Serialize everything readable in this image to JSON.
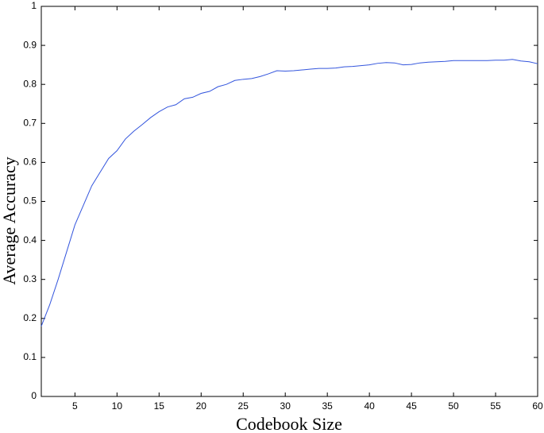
{
  "chart_data": {
    "type": "line",
    "xlabel": "Codebook Size",
    "ylabel": "Average Accuracy",
    "x": [
      1,
      2,
      3,
      4,
      5,
      6,
      7,
      8,
      9,
      10,
      11,
      12,
      13,
      14,
      15,
      16,
      17,
      18,
      19,
      20,
      21,
      22,
      23,
      24,
      25,
      26,
      27,
      28,
      29,
      30,
      31,
      32,
      33,
      34,
      35,
      36,
      37,
      38,
      39,
      40,
      41,
      42,
      43,
      44,
      45,
      46,
      47,
      48,
      49,
      50,
      51,
      52,
      53,
      54,
      55,
      56,
      57,
      58,
      59,
      60
    ],
    "series": [
      {
        "color": "#3355dd",
        "values": [
          0.18,
          0.235,
          0.3,
          0.37,
          0.44,
          0.49,
          0.54,
          0.575,
          0.61,
          0.63,
          0.66,
          0.68,
          0.697,
          0.715,
          0.73,
          0.742,
          0.748,
          0.763,
          0.767,
          0.777,
          0.782,
          0.794,
          0.8,
          0.81,
          0.813,
          0.815,
          0.82,
          0.827,
          0.835,
          0.834,
          0.835,
          0.837,
          0.839,
          0.841,
          0.841,
          0.842,
          0.845,
          0.846,
          0.848,
          0.85,
          0.854,
          0.856,
          0.855,
          0.85,
          0.851,
          0.855,
          0.857,
          0.858,
          0.859,
          0.861,
          0.861,
          0.861,
          0.861,
          0.861,
          0.862,
          0.862,
          0.864,
          0.86,
          0.858,
          0.853
        ]
      }
    ],
    "xlim": [
      1,
      60
    ],
    "xticks": [
      5,
      10,
      15,
      20,
      25,
      30,
      35,
      40,
      45,
      50,
      55,
      60
    ],
    "ylim": [
      0,
      1
    ],
    "yticks": [
      0,
      0.1,
      0.2,
      0.3,
      0.4,
      0.5,
      0.6,
      0.7,
      0.8,
      0.9,
      1
    ],
    "grid": false
  }
}
